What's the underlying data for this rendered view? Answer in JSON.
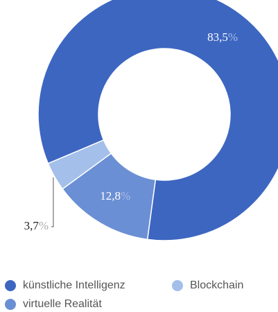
{
  "chart_data": {
    "type": "donut",
    "categories": [
      "künstliche Intelligenz",
      "virtuelle Realität",
      "Blockchain"
    ],
    "values": [
      83.5,
      12.8,
      3.7
    ],
    "value_labels": [
      "83,5",
      "12,8",
      "3,7"
    ],
    "unit": "%",
    "colors": [
      "#3d66c1",
      "#6b8fd4",
      "#a3bfea"
    ],
    "legend": "bottom"
  }
}
